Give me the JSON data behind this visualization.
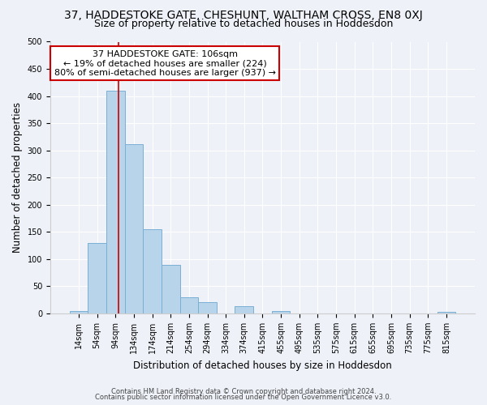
{
  "title": "37, HADDESTOKE GATE, CHESHUNT, WALTHAM CROSS, EN8 0XJ",
  "subtitle": "Size of property relative to detached houses in Hoddesdon",
  "xlabel": "Distribution of detached houses by size in Hoddesdon",
  "ylabel": "Number of detached properties",
  "bar_labels": [
    "14sqm",
    "54sqm",
    "94sqm",
    "134sqm",
    "174sqm",
    "214sqm",
    "254sqm",
    "294sqm",
    "334sqm",
    "374sqm",
    "415sqm",
    "455sqm",
    "495sqm",
    "535sqm",
    "575sqm",
    "615sqm",
    "655sqm",
    "695sqm",
    "735sqm",
    "775sqm",
    "815sqm"
  ],
  "bar_values": [
    5,
    130,
    410,
    312,
    155,
    90,
    29,
    21,
    0,
    14,
    0,
    5,
    0,
    0,
    0,
    0,
    0,
    0,
    0,
    0,
    3
  ],
  "bar_color": "#b8d4ea",
  "bar_edge_color": "#7aafd4",
  "vline_x": 2.15,
  "vline_color": "#cc0000",
  "annotation_title": "37 HADDESTOKE GATE: 106sqm",
  "annotation_line1": "← 19% of detached houses are smaller (224)",
  "annotation_line2": "80% of semi-detached houses are larger (937) →",
  "box_color": "#ffffff",
  "box_edge_color": "#cc0000",
  "ylim": [
    0,
    500
  ],
  "yticks": [
    0,
    50,
    100,
    150,
    200,
    250,
    300,
    350,
    400,
    450,
    500
  ],
  "footnote1": "Contains HM Land Registry data © Crown copyright and database right 2024.",
  "footnote2": "Contains public sector information licensed under the Open Government Licence v3.0.",
  "background_color": "#eef2f8",
  "plot_background": "#eef2f8",
  "grid_color": "#ffffff",
  "title_fontsize": 10,
  "subtitle_fontsize": 9,
  "ylabel_fontsize": 8.5,
  "xlabel_fontsize": 8.5,
  "tick_fontsize": 7,
  "annot_fontsize": 8
}
